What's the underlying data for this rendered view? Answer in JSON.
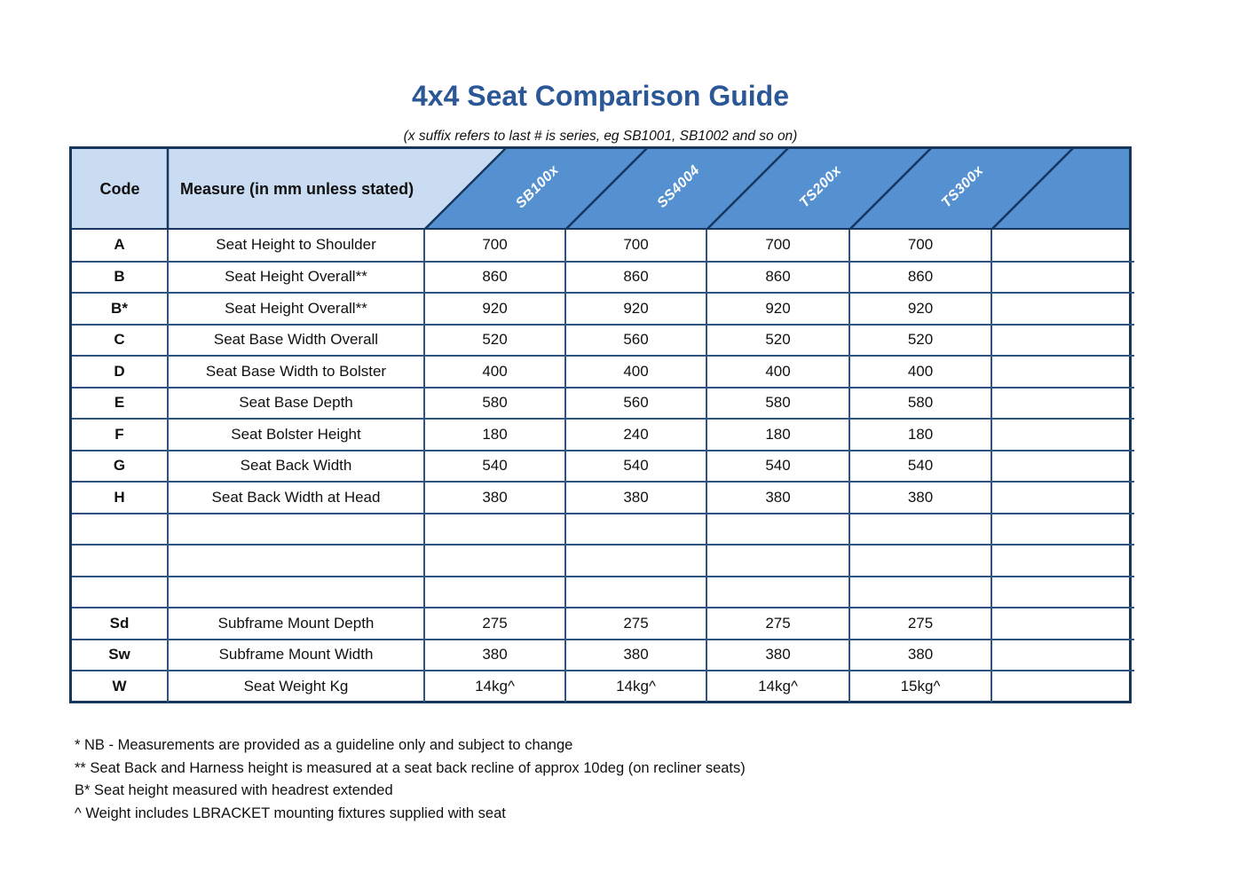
{
  "title": "4x4 Seat Comparison Guide",
  "subtitle": "(x suffix refers to last # is series, eg SB1001, SB1002 and so on)",
  "table": {
    "code_header": "Code",
    "measure_header": "Measure (in mm unless stated)",
    "products": [
      "SB100x",
      "SS4004",
      "TS200x",
      "TS300x"
    ],
    "rows": [
      {
        "code": "A",
        "measure": "Seat Height to Shoulder",
        "values": [
          "700",
          "700",
          "700",
          "700"
        ]
      },
      {
        "code": "B",
        "measure": "Seat Height Overall**",
        "values": [
          "860",
          "860",
          "860",
          "860"
        ]
      },
      {
        "code": "B*",
        "measure": "Seat Height Overall**",
        "values": [
          "920",
          "920",
          "920",
          "920"
        ]
      },
      {
        "code": "C",
        "measure": "Seat Base Width Overall",
        "values": [
          "520",
          "560",
          "520",
          "520"
        ]
      },
      {
        "code": "D",
        "measure": "Seat Base Width to Bolster",
        "values": [
          "400",
          "400",
          "400",
          "400"
        ]
      },
      {
        "code": "E",
        "measure": "Seat Base Depth",
        "values": [
          "580",
          "560",
          "580",
          "580"
        ]
      },
      {
        "code": "F",
        "measure": "Seat Bolster Height",
        "values": [
          "180",
          "240",
          "180",
          "180"
        ]
      },
      {
        "code": "G",
        "measure": "Seat Back Width",
        "values": [
          "540",
          "540",
          "540",
          "540"
        ]
      },
      {
        "code": "H",
        "measure": "Seat Back Width at Head",
        "values": [
          "380",
          "380",
          "380",
          "380"
        ]
      },
      {
        "code": "",
        "measure": "",
        "values": [
          "",
          "",
          "",
          ""
        ]
      },
      {
        "code": "",
        "measure": "",
        "values": [
          "",
          "",
          "",
          ""
        ]
      },
      {
        "code": "",
        "measure": "",
        "values": [
          "",
          "",
          "",
          ""
        ]
      },
      {
        "code": "Sd",
        "measure": "Subframe Mount Depth",
        "values": [
          "275",
          "275",
          "275",
          "275"
        ]
      },
      {
        "code": "Sw",
        "measure": "Subframe Mount Width",
        "values": [
          "380",
          "380",
          "380",
          "380"
        ]
      },
      {
        "code": "W",
        "measure": "Seat Weight Kg",
        "values": [
          "14kg^",
          "14kg^",
          "14kg^",
          "15kg^"
        ]
      }
    ]
  },
  "footnotes": [
    "* NB - Measurements are provided as a guideline only and subject to change",
    "** Seat Back and Harness height is measured at a seat back recline of approx 10deg (on recliner seats)",
    "B* Seat height measured with headrest extended",
    "^ Weight includes LBRACKET mounting fixtures supplied with seat"
  ],
  "colors": {
    "header_light": "#cadcf2",
    "header_dark": "#5590d0",
    "border_navy": "#17365d",
    "grid_border": "#2f5381",
    "title_blue": "#2c5796"
  }
}
